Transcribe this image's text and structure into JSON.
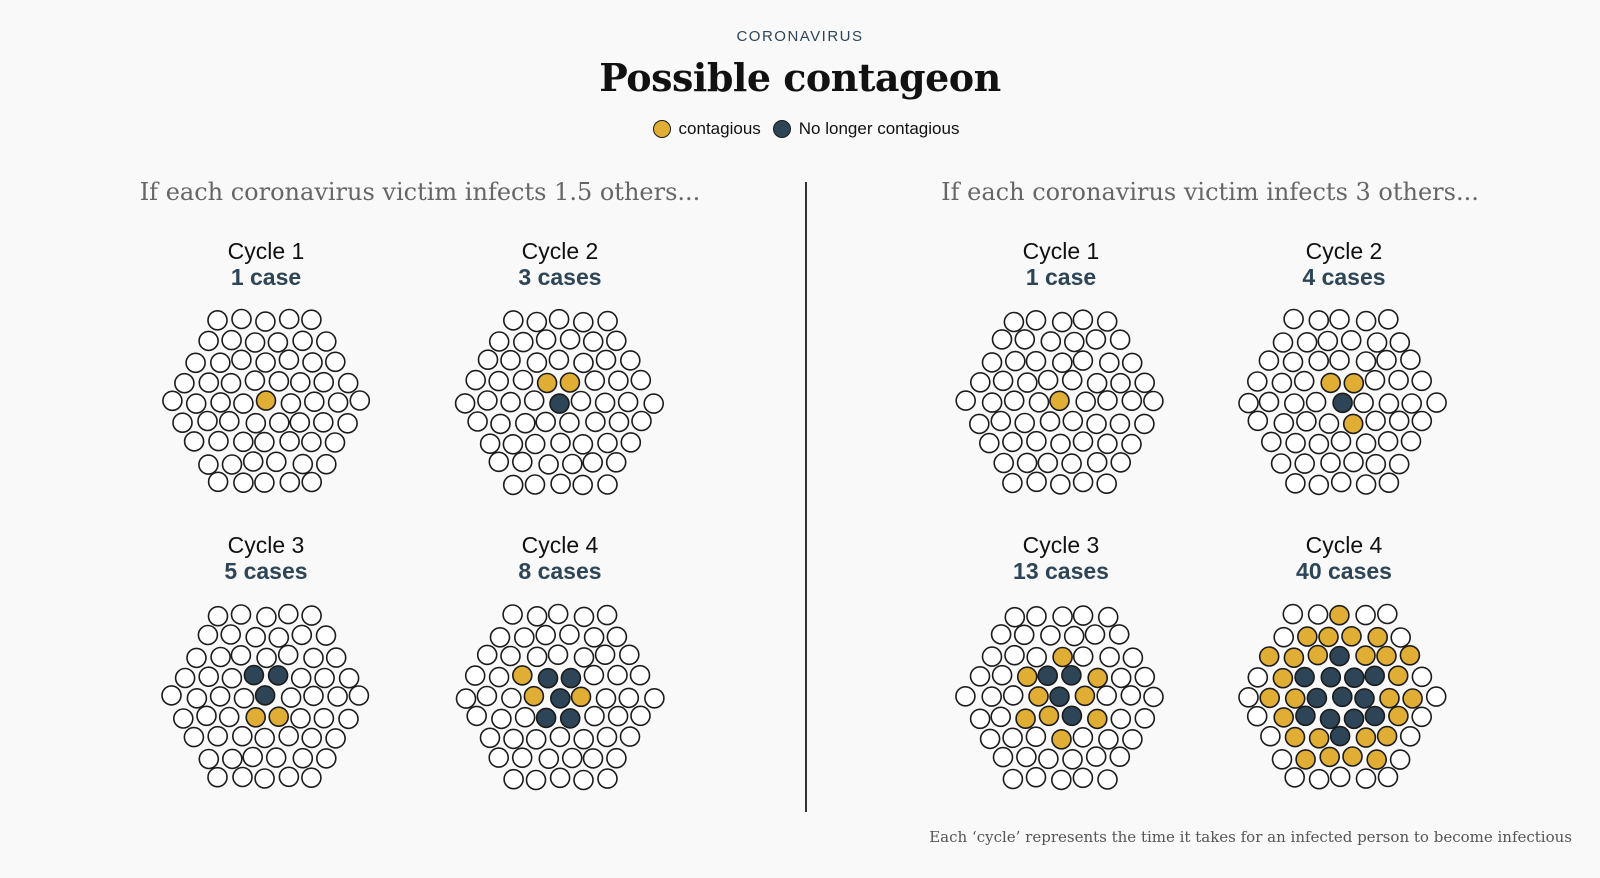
{
  "header": {
    "kicker": "CORONAVIRUS",
    "title": "Possible contageon"
  },
  "legend": {
    "contagious_label": "contagious",
    "no_longer_label": "No longer contagious"
  },
  "colors": {
    "contagious": "#e0ad35",
    "no_longer_contagious": "#2d4556",
    "healthy": "#ffffff",
    "outline": "#1b1b1b"
  },
  "panels": [
    {
      "heading": "If each coronavirus victim infects 1.5 others...",
      "cycles": [
        {
          "name": "Cycle 1",
          "cases": "1 case",
          "contagious": 1,
          "no_longer": 0
        },
        {
          "name": "Cycle 2",
          "cases": "3 cases",
          "contagious": 2,
          "no_longer": 1
        },
        {
          "name": "Cycle 3",
          "cases": "5 cases",
          "contagious": 2,
          "no_longer": 3
        },
        {
          "name": "Cycle 4",
          "cases": "8 cases",
          "contagious": 3,
          "no_longer": 5
        }
      ]
    },
    {
      "heading": "If each coronavirus victim infects 3 others...",
      "cycles": [
        {
          "name": "Cycle 1",
          "cases": "1 case",
          "contagious": 1,
          "no_longer": 0
        },
        {
          "name": "Cycle 2",
          "cases": "4 cases",
          "contagious": 3,
          "no_longer": 1
        },
        {
          "name": "Cycle 3",
          "cases": "13 cases",
          "contagious": 9,
          "no_longer": 4
        },
        {
          "name": "Cycle 4",
          "cases": "40 cases",
          "contagious": 27,
          "no_longer": 13
        }
      ]
    }
  ],
  "footnote": "Each ‘cycle’ represents the time it takes for an infected person to become infectious"
}
